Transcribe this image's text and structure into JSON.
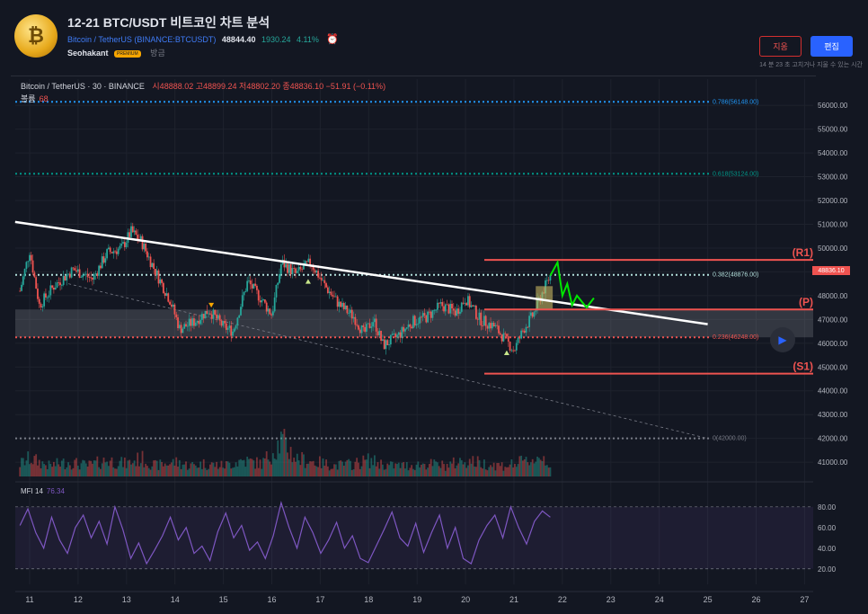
{
  "header": {
    "logo_text": "₿",
    "title": "12-21 BTC/USDT 비트코인 차트 분석",
    "pair_label": "Bitcoin / TetherUS",
    "exchange_label": "BINANCE:BTCUSDT",
    "last_price": "48844.40",
    "change_abs": "1930.24",
    "change_pct": "4.11%",
    "author": "Seohakant",
    "author_badge": "PREMIUM",
    "posted": "방금",
    "delete_label": "지움",
    "edit_label": "편집",
    "edit_note": "14 분 23 초 고치거나 지울 수 있는 시간"
  },
  "legend": {
    "symbol": "Bitcoin / TetherUS · 30 · BINANCE",
    "ohlc": "시48888.02 고48899.24 저48802.20 종48836.10 −51.91 (−0.11%)",
    "volume_label": "볼륨",
    "volume_value": "68",
    "mfi_label": "MFI 14",
    "mfi_value": "76.34"
  },
  "price_tag": "48836.10",
  "colors": {
    "background": "#131722",
    "up": "#26a69a",
    "down": "#ef5350",
    "level": "#ef5350",
    "projection": "#00e600",
    "mfi": "#7e57c2",
    "fib_top": "#2196f3",
    "fib_618": "#009688",
    "fib_382": "#b2dfdb",
    "fib_236": "#ef5350"
  },
  "icons": {
    "alarm": "alarm-clock-icon",
    "play": "play-icon"
  },
  "chart_data": [
    {
      "type": "candlestick",
      "price_axis": [
        "56000.00",
        "55000.00",
        "54000.00",
        "53000.00",
        "52000.00",
        "51000.00",
        "50000.00",
        "49000.00",
        "48000.00",
        "47000.00",
        "46000.00",
        "45000.00",
        "44000.00",
        "43000.00",
        "42000.00",
        "41000.00"
      ],
      "x_axis": [
        "11",
        "12",
        "13",
        "14",
        "15",
        "16",
        "17",
        "18",
        "19",
        "20",
        "21",
        "22",
        "23",
        "24",
        "25",
        "26",
        "27"
      ],
      "ylim": [
        40400,
        56800
      ],
      "fib_levels": [
        {
          "label": "0.786(56148.00)",
          "value": 56148,
          "color": "#2196f3"
        },
        {
          "label": "0.618(53124.00)",
          "value": 53124,
          "color": "#009688"
        },
        {
          "label": "0.382(48876.00)",
          "value": 48876,
          "color": "#b2dfdb"
        },
        {
          "label": "0.236(46248.00)",
          "value": 46248,
          "color": "#ef5350"
        },
        {
          "label": "0(42000.00)",
          "value": 42000,
          "color": "#787b86"
        }
      ],
      "levels": [
        {
          "label": "(R1)",
          "value": 49500
        },
        {
          "label": "(P)",
          "value": 47420
        },
        {
          "label": "(S1)",
          "value": 44720
        }
      ],
      "price_path": [
        [
          10.8,
          48200
        ],
        [
          11.0,
          49900
        ],
        [
          11.2,
          47600
        ],
        [
          11.5,
          48400
        ],
        [
          11.9,
          49100
        ],
        [
          12.3,
          48700
        ],
        [
          12.6,
          49800
        ],
        [
          12.9,
          50000
        ],
        [
          13.1,
          50700
        ],
        [
          13.3,
          50300
        ],
        [
          13.6,
          49000
        ],
        [
          13.9,
          47800
        ],
        [
          14.1,
          46600
        ],
        [
          14.4,
          46900
        ],
        [
          14.7,
          47400
        ],
        [
          15.0,
          46700
        ],
        [
          15.2,
          46500
        ],
        [
          15.5,
          48600
        ],
        [
          15.8,
          47800
        ],
        [
          16.0,
          47200
        ],
        [
          16.2,
          49400
        ],
        [
          16.5,
          48900
        ],
        [
          16.8,
          49400
        ],
        [
          17.1,
          48400
        ],
        [
          17.4,
          47600
        ],
        [
          17.7,
          47100
        ],
        [
          17.9,
          46400
        ],
        [
          18.1,
          47000
        ],
        [
          18.3,
          45900
        ],
        [
          18.6,
          46300
        ],
        [
          18.9,
          46900
        ],
        [
          19.2,
          47100
        ],
        [
          19.5,
          47600
        ],
        [
          19.8,
          47300
        ],
        [
          20.0,
          47900
        ],
        [
          20.3,
          47000
        ],
        [
          20.6,
          46700
        ],
        [
          20.8,
          46200
        ],
        [
          21.0,
          45700
        ],
        [
          21.2,
          46600
        ],
        [
          21.4,
          47200
        ],
        [
          21.6,
          48200
        ],
        [
          21.75,
          48840
        ]
      ],
      "volume_path": [
        [
          10.8,
          0.35
        ],
        [
          11.0,
          0.5
        ],
        [
          11.4,
          0.3
        ],
        [
          11.8,
          0.4
        ],
        [
          12.2,
          0.3
        ],
        [
          12.6,
          0.45
        ],
        [
          13.0,
          0.35
        ],
        [
          13.3,
          0.5
        ],
        [
          13.6,
          0.3
        ],
        [
          14.0,
          0.4
        ],
        [
          14.3,
          0.3
        ],
        [
          14.6,
          0.35
        ],
        [
          15.0,
          0.3
        ],
        [
          15.4,
          0.45
        ],
        [
          15.8,
          0.35
        ],
        [
          16.2,
          1.0
        ],
        [
          16.5,
          0.5
        ],
        [
          16.9,
          0.4
        ],
        [
          17.3,
          0.3
        ],
        [
          17.7,
          0.35
        ],
        [
          18.0,
          0.45
        ],
        [
          18.4,
          0.3
        ],
        [
          18.8,
          0.3
        ],
        [
          19.2,
          0.35
        ],
        [
          19.6,
          0.3
        ],
        [
          20.0,
          0.45
        ],
        [
          20.4,
          0.35
        ],
        [
          20.8,
          0.3
        ],
        [
          21.2,
          0.4
        ],
        [
          21.6,
          0.55
        ],
        [
          21.75,
          0.3
        ]
      ],
      "projection": [
        [
          21.75,
          48840
        ],
        [
          21.9,
          49400
        ],
        [
          22.0,
          48000
        ],
        [
          22.1,
          48500
        ],
        [
          22.2,
          47600
        ],
        [
          22.3,
          48000
        ],
        [
          22.5,
          47500
        ],
        [
          22.65,
          47900
        ]
      ],
      "trendline": [
        [
          10.7,
          51100
        ],
        [
          25.0,
          46800
        ]
      ],
      "support_dashed": [
        [
          11.8,
          48500
        ],
        [
          25.0,
          42000
        ]
      ],
      "entry_box": {
        "x0": 21.45,
        "x1": 21.8,
        "y0": 47400,
        "y1": 48400
      }
    },
    {
      "type": "line",
      "name": "MFI 14",
      "y_axis": [
        "80.00",
        "60.00",
        "40.00",
        "20.00"
      ],
      "ylim": [
        5,
        92
      ],
      "bands": [
        20,
        80
      ],
      "values": [
        62,
        78,
        55,
        40,
        70,
        48,
        35,
        60,
        72,
        50,
        66,
        44,
        80,
        58,
        30,
        45,
        25,
        38,
        52,
        70,
        48,
        60,
        35,
        42,
        28,
        56,
        74,
        50,
        62,
        38,
        46,
        30,
        52,
        84,
        60,
        40,
        70,
        55,
        35,
        48,
        65,
        40,
        52,
        30,
        26,
        42,
        58,
        75,
        50,
        42,
        64,
        36,
        55,
        72,
        40,
        60,
        30,
        25,
        48,
        62,
        72,
        50,
        80,
        60,
        44,
        66,
        76,
        70
      ]
    }
  ]
}
